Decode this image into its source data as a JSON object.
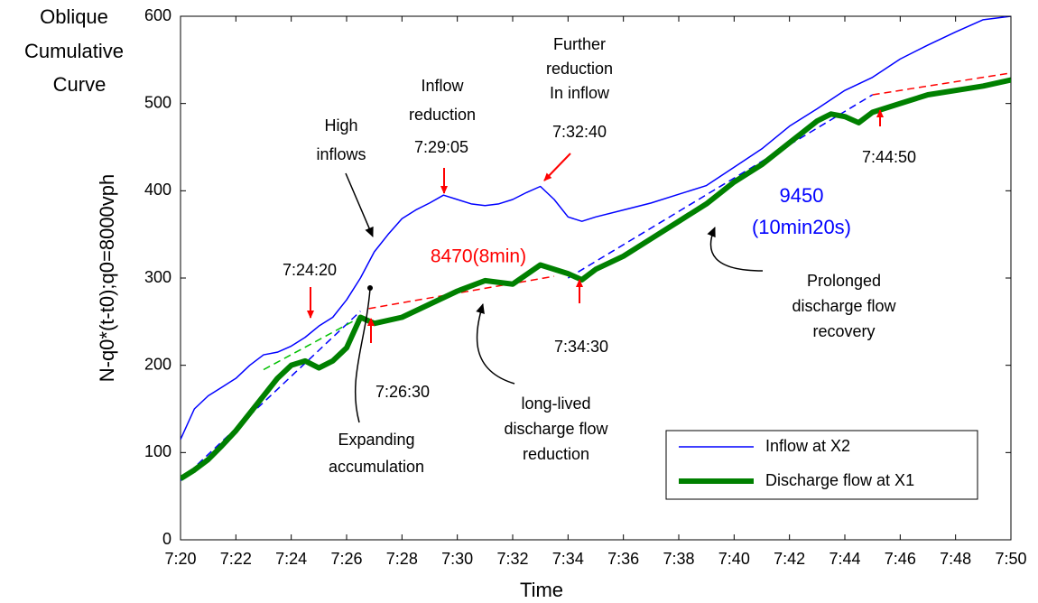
{
  "chart_data": {
    "type": "line",
    "title": [
      "Oblique",
      "Cumulative",
      "Curve"
    ],
    "xlabel": "Time",
    "ylabel": "N-q0*(t-t0);q0=8000vph",
    "xlim": [
      20,
      50
    ],
    "xticks": [
      {
        "value": 20,
        "label": "7:20"
      },
      {
        "value": 22,
        "label": "7:22"
      },
      {
        "value": 24,
        "label": "7:24"
      },
      {
        "value": 26,
        "label": "7:26"
      },
      {
        "value": 28,
        "label": "7:28"
      },
      {
        "value": 30,
        "label": "7:30"
      },
      {
        "value": 32,
        "label": "7:32"
      },
      {
        "value": 34,
        "label": "7:34"
      },
      {
        "value": 36,
        "label": "7:36"
      },
      {
        "value": 38,
        "label": "7:38"
      },
      {
        "value": 40,
        "label": "7:40"
      },
      {
        "value": 42,
        "label": "7:42"
      },
      {
        "value": 44,
        "label": "7:44"
      },
      {
        "value": 46,
        "label": "7:46"
      },
      {
        "value": 48,
        "label": "7:48"
      },
      {
        "value": 50,
        "label": "7:50"
      }
    ],
    "ylim": [
      0,
      600
    ],
    "yticks": [
      0,
      100,
      200,
      300,
      400,
      500,
      600
    ],
    "legend": "lower right",
    "series": [
      {
        "name": "Inflow at X2",
        "color": "#0000ff",
        "width": 1.5,
        "x": [
          20,
          20.5,
          21,
          21.5,
          22,
          22.5,
          23,
          23.5,
          24,
          24.5,
          25,
          25.5,
          26,
          26.5,
          27,
          27.5,
          28,
          28.5,
          29,
          29.5,
          30,
          30.5,
          31,
          31.5,
          32,
          32.5,
          33,
          33.5,
          34,
          34.5,
          35,
          36,
          37,
          38,
          39,
          40,
          41,
          42,
          43,
          44,
          45,
          46,
          47,
          48,
          49,
          50
        ],
        "values": [
          115,
          150,
          165,
          175,
          185,
          200,
          212,
          215,
          222,
          232,
          245,
          255,
          275,
          300,
          330,
          350,
          368,
          378,
          386,
          395,
          390,
          385,
          383,
          385,
          390,
          398,
          405,
          390,
          370,
          365,
          370,
          378,
          386,
          396,
          406,
          427,
          448,
          474,
          494,
          515,
          530,
          551,
          567,
          582,
          596,
          600
        ]
      },
      {
        "name": "Discharge flow at X1",
        "color": "#008000",
        "width": 6,
        "x": [
          20,
          20.5,
          21,
          21.5,
          22,
          22.5,
          23,
          23.5,
          24,
          24.5,
          25,
          25.5,
          26,
          26.5,
          27,
          28,
          29,
          30,
          31,
          32,
          33,
          34,
          34.5,
          35,
          36,
          37,
          38,
          39,
          40,
          41,
          42,
          43,
          43.5,
          44,
          44.5,
          45,
          46,
          47,
          48,
          49,
          50
        ],
        "values": [
          70,
          80,
          92,
          108,
          125,
          145,
          165,
          185,
          200,
          205,
          197,
          205,
          220,
          255,
          248,
          255,
          270,
          285,
          297,
          293,
          315,
          305,
          298,
          310,
          325,
          345,
          365,
          385,
          410,
          430,
          455,
          480,
          488,
          485,
          478,
          490,
          500,
          510,
          515,
          520,
          527
        ]
      }
    ],
    "reference_lines": [
      {
        "color": "#ff0000",
        "x": [
          26.8,
          33.5
        ],
        "values": [
          265,
          302
        ]
      },
      {
        "color": "#ff0000",
        "x": [
          45,
          50
        ],
        "values": [
          510,
          535
        ]
      },
      {
        "color": "#0000ff",
        "x": [
          20,
          26.5
        ],
        "values": [
          68,
          262
        ]
      },
      {
        "color": "#0000ff",
        "x": [
          34,
          45
        ],
        "values": [
          300,
          510
        ]
      },
      {
        "color": "#00c000",
        "x": [
          23,
          26.5
        ],
        "values": [
          195,
          255
        ]
      }
    ],
    "annotations": [
      {
        "text": [
          "High",
          "inflows"
        ],
        "color": "#000000"
      },
      {
        "text": [
          "Inflow",
          "reduction"
        ],
        "color": "#000000"
      },
      {
        "text": [
          "Further",
          "reduction",
          "In inflow"
        ],
        "color": "#000000"
      },
      {
        "text": [
          "7:29:05"
        ],
        "color": "#000000"
      },
      {
        "text": [
          "7:32:40"
        ],
        "color": "#000000"
      },
      {
        "text": [
          "7:24:20"
        ],
        "color": "#000000"
      },
      {
        "text": [
          "7:26:30"
        ],
        "color": "#000000"
      },
      {
        "text": [
          "7:34:30"
        ],
        "color": "#000000"
      },
      {
        "text": [
          "7:44:50"
        ],
        "color": "#000000"
      },
      {
        "text": [
          "8470(8min)"
        ],
        "color": "#ff0000"
      },
      {
        "text": [
          "9450",
          "(10min20s)"
        ],
        "color": "#0000ff"
      },
      {
        "text": [
          "Prolonged",
          "discharge flow",
          "recovery"
        ],
        "color": "#000000"
      },
      {
        "text": [
          "long-lived",
          "discharge flow",
          "reduction"
        ],
        "color": "#000000"
      },
      {
        "text": [
          "Expanding",
          "accumulation"
        ],
        "color": "#000000"
      }
    ]
  }
}
